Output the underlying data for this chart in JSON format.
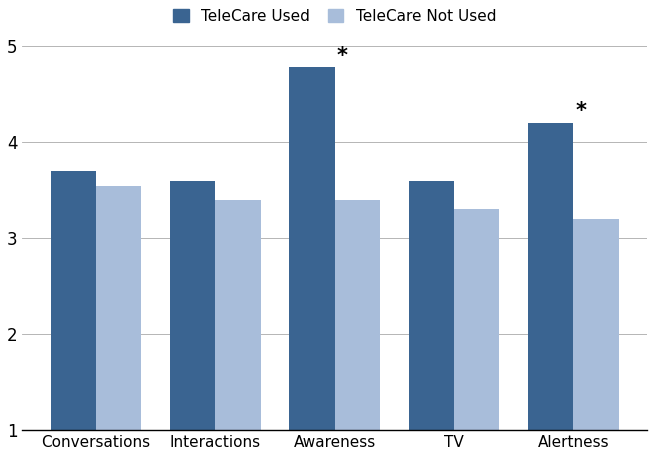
{
  "categories": [
    "Conversations",
    "Interactions",
    "Awareness",
    "TV",
    "Alertness"
  ],
  "telecare_used": [
    3.7,
    3.6,
    4.78,
    3.6,
    4.2
  ],
  "telecare_not_used": [
    3.54,
    3.4,
    3.4,
    3.31,
    3.2
  ],
  "color_used": "#3A6491",
  "color_not_used": "#A8BDDA",
  "legend_used": "TeleCare Used",
  "legend_not_used": "TeleCare Not Used",
  "ylim": [
    1,
    5.05
  ],
  "yticks": [
    1,
    2,
    3,
    4,
    5
  ],
  "ytick_labels": [
    "1",
    "2",
    "3",
    "4",
    "5"
  ],
  "significant": [
    "Awareness",
    "Alertness"
  ],
  "bar_width": 0.38,
  "figsize": [
    6.54,
    4.57
  ],
  "dpi": 100
}
